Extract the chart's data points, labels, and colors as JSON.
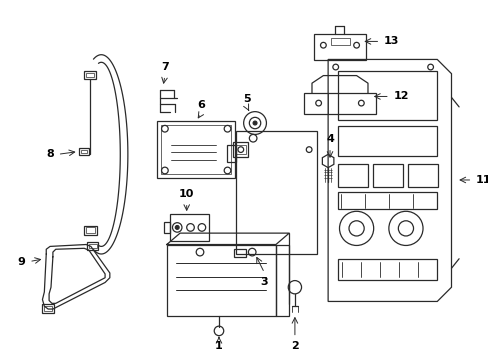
{
  "background_color": "#ffffff",
  "line_color": "#2a2a2a",
  "label_color": "#000000",
  "fig_width": 4.89,
  "fig_height": 3.6,
  "dpi": 100
}
